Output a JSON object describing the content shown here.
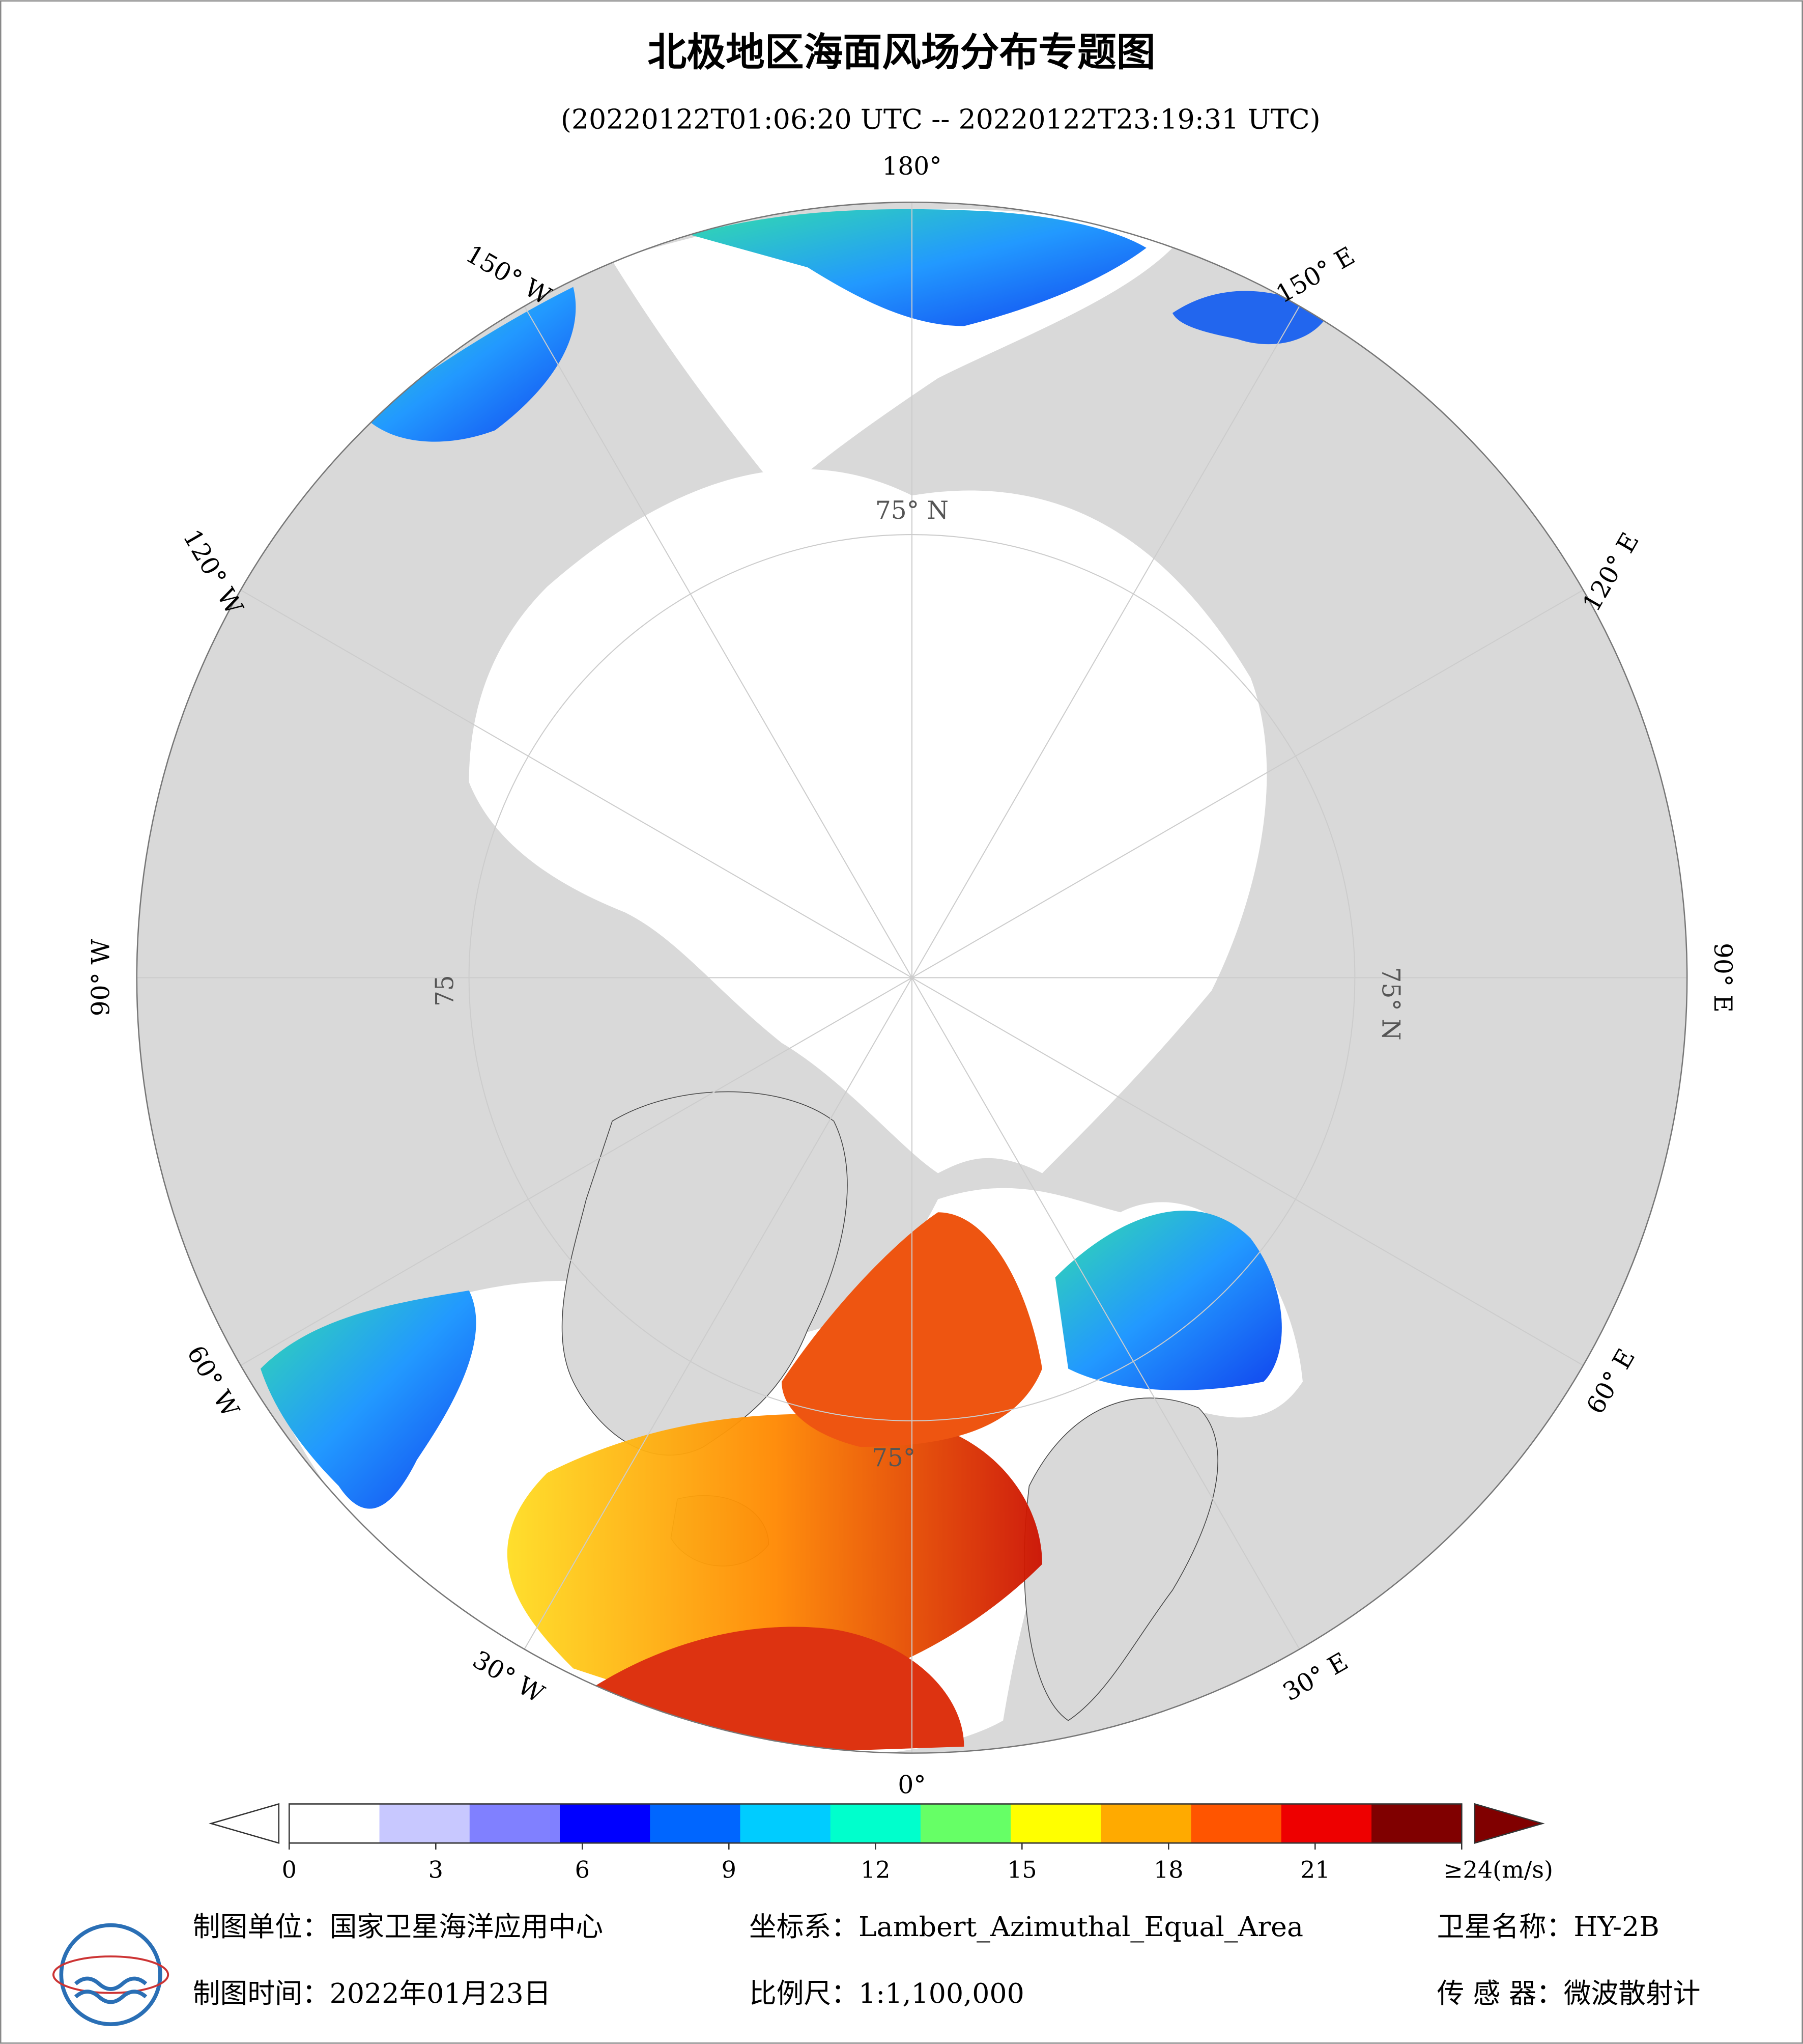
{
  "header": {
    "title": "北极地区海面风场分布专题图",
    "subtitle": "(20220122T01:06:20 UTC -- 20220122T23:19:31 UTC)"
  },
  "map": {
    "longitude_labels": [
      "180°",
      "150° E",
      "120° E",
      "90° E",
      "60° E",
      "30° E",
      "0°",
      "30° W",
      "60° W",
      "90° W",
      "120° W",
      "150° W"
    ],
    "latitude_labels": [
      "75° N",
      "75° N",
      "75",
      "75°"
    ]
  },
  "colorbar": {
    "range": [
      0,
      24
    ],
    "ticks": [
      0,
      3,
      6,
      9,
      12,
      15,
      18,
      21,
      {
        "value": 24,
        "label": "≥24(m/s)"
      }
    ],
    "colors": [
      "#ffffff",
      "#c8c8ff",
      "#8080ff",
      "#0000ff",
      "#0066ff",
      "#00ccff",
      "#00ffcc",
      "#66ff66",
      "#ffff00",
      "#ffaa00",
      "#ff5500",
      "#ee0000",
      "#800000"
    ]
  },
  "footer": {
    "producer": "制图单位：国家卫星海洋应用中心",
    "date": "制图时间：2022年01月23日",
    "projection": "坐标系：Lambert_Azimuthal_Equal_Area",
    "scale": "比例尺：1:1,100,000",
    "satellite": "卫星名称：HY-2B",
    "sensor": "传 感 器：微波散射计"
  }
}
